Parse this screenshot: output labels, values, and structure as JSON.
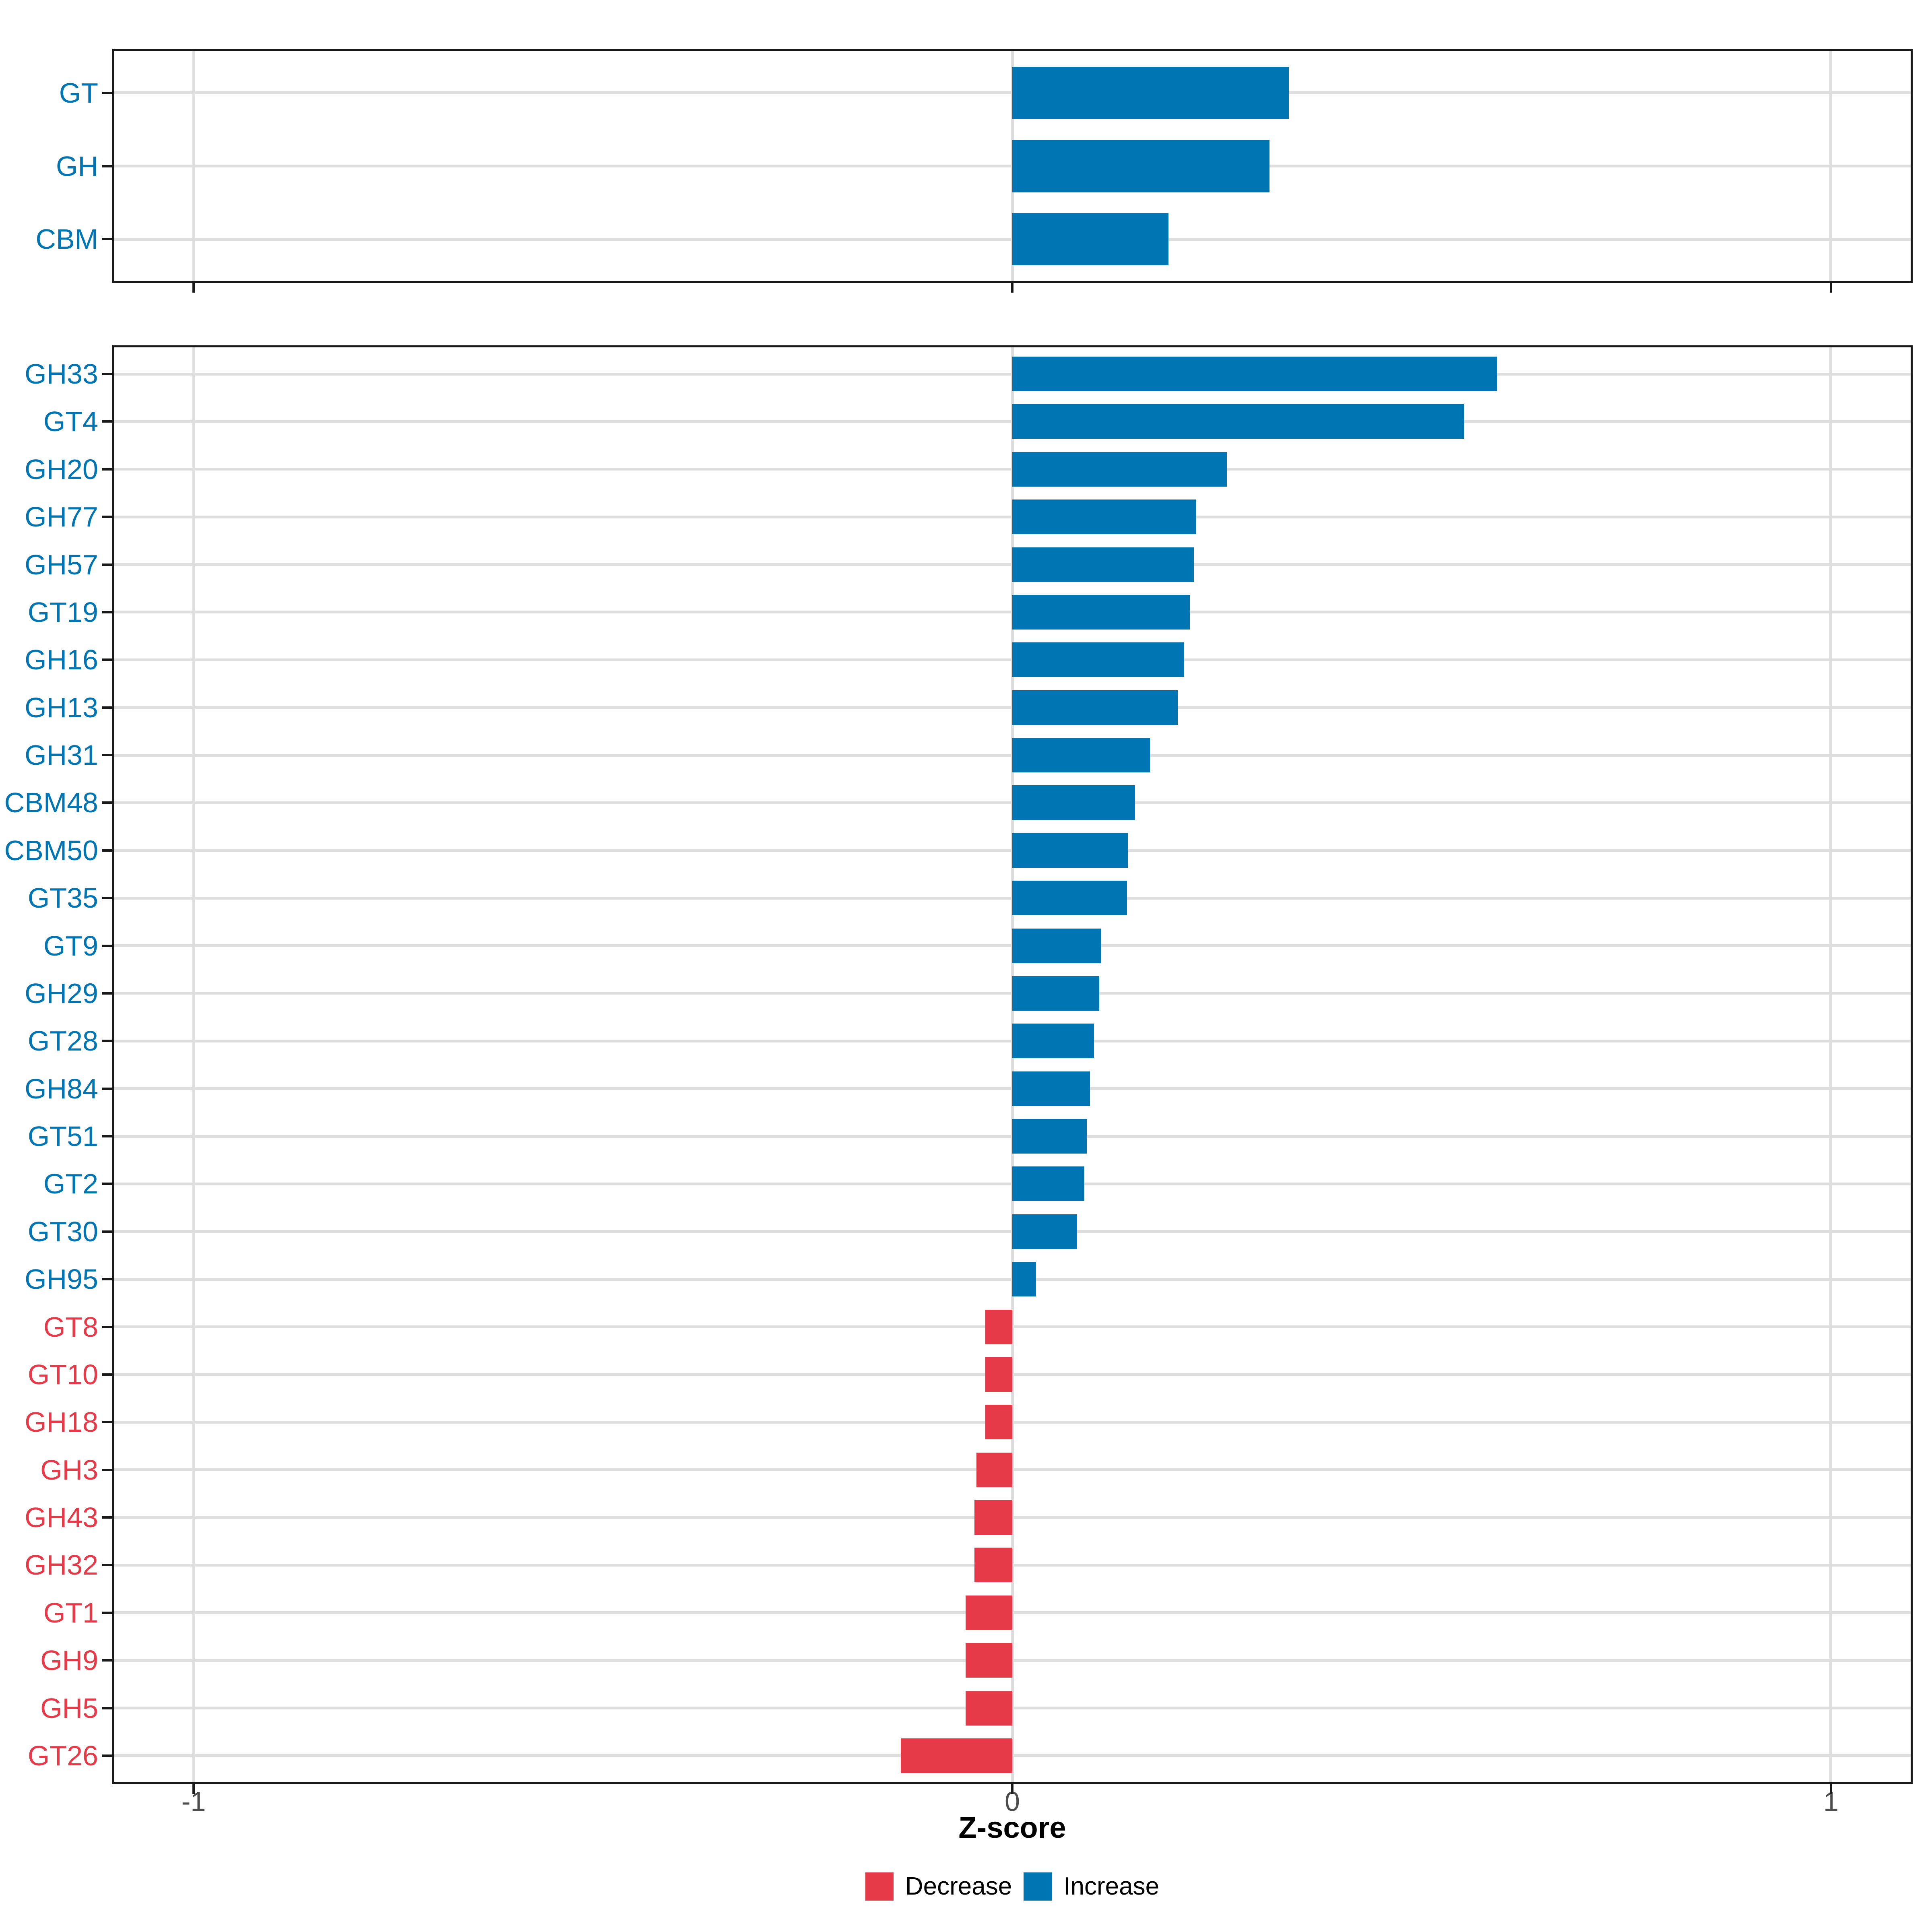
{
  "axis": {
    "label": "Z-score",
    "ticks": [
      "-1",
      "0",
      "1"
    ],
    "tick_values": [
      -1,
      0,
      1
    ],
    "xlim": [
      -1.1,
      1.1
    ]
  },
  "colors": {
    "increase": "#0075b4",
    "decrease": "#e73a49",
    "grid": "#dedede",
    "axis_text": "#4d4d4d",
    "panel_border": "#1a1a1a"
  },
  "legend": {
    "items": [
      {
        "label": "Decrease",
        "color": "#e73a49"
      },
      {
        "label": "Increase",
        "color": "#0075b4"
      }
    ]
  },
  "chart_data": [
    {
      "type": "bar",
      "name": "class-panel",
      "orientation": "horizontal",
      "title": "",
      "xlabel": "Z-score",
      "xlim": [
        -1.1,
        1.1
      ],
      "grid": true,
      "categories": [
        "GT",
        "GH",
        "CBM"
      ],
      "values": [
        0.338,
        0.314,
        0.191
      ]
    },
    {
      "type": "bar",
      "name": "family-panel",
      "orientation": "horizontal",
      "title": "",
      "xlabel": "Z-score",
      "xlim": [
        -1.1,
        1.1
      ],
      "grid": true,
      "categories": [
        "GH33",
        "GT4",
        "GH20",
        "GH77",
        "GH57",
        "GT19",
        "GH16",
        "GH13",
        "GH31",
        "CBM48",
        "CBM50",
        "GT35",
        "GT9",
        "GH29",
        "GT28",
        "GH84",
        "GT51",
        "GT2",
        "GT30",
        "GH95",
        "GT8",
        "GT10",
        "GH18",
        "GH3",
        "GH43",
        "GH32",
        "GT1",
        "GH9",
        "GH5",
        "GT26"
      ],
      "values": [
        0.592,
        0.552,
        0.262,
        0.224,
        0.222,
        0.217,
        0.21,
        0.202,
        0.168,
        0.15,
        0.141,
        0.14,
        0.108,
        0.106,
        0.1,
        0.095,
        0.091,
        0.088,
        0.079,
        0.029,
        -0.033,
        -0.033,
        -0.033,
        -0.044,
        -0.046,
        -0.046,
        -0.057,
        -0.057,
        -0.057,
        -0.136
      ]
    }
  ]
}
